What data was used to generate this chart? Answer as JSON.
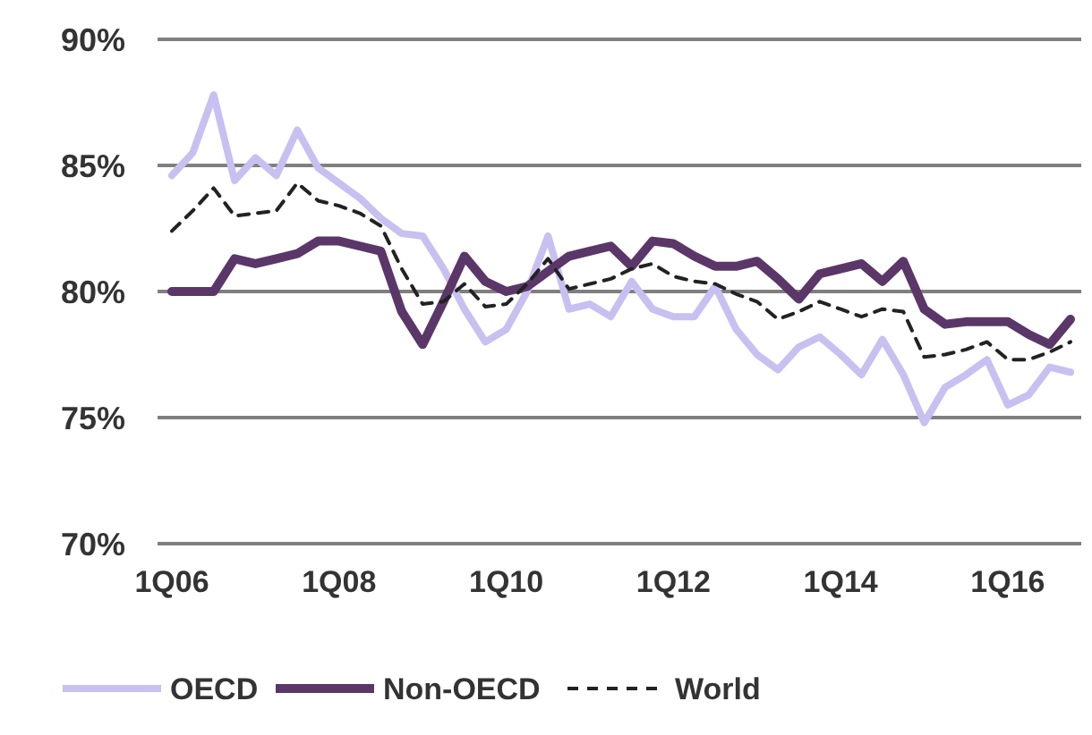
{
  "chart_data": {
    "type": "line",
    "categories": [
      "1Q06",
      null,
      null,
      null,
      null,
      null,
      null,
      null,
      "1Q08",
      null,
      null,
      null,
      null,
      null,
      null,
      null,
      "1Q10",
      null,
      null,
      null,
      null,
      null,
      null,
      null,
      "1Q12",
      null,
      null,
      null,
      null,
      null,
      null,
      null,
      "1Q14",
      null,
      null,
      null,
      null,
      null,
      null,
      null,
      "1Q16",
      null,
      null,
      null
    ],
    "ylim": [
      70,
      90
    ],
    "yticks": [
      {
        "value": 70,
        "label": "70%"
      },
      {
        "value": 75,
        "label": "75%"
      },
      {
        "value": 80,
        "label": "80%"
      },
      {
        "value": 85,
        "label": "85%"
      },
      {
        "value": 90,
        "label": "90%"
      }
    ],
    "grid": "y",
    "legend": "bottom",
    "marker": "none",
    "series": [
      {
        "name": "OECD",
        "color": "#c8c0f0",
        "line_style": "solid",
        "values": [
          84.6,
          85.5,
          87.8,
          84.4,
          85.3,
          84.6,
          86.4,
          84.9,
          84.3,
          83.7,
          82.9,
          82.3,
          82.2,
          80.9,
          79.3,
          78,
          78.5,
          80,
          82.2,
          79.3,
          79.5,
          79,
          80.4,
          79.3,
          79,
          79,
          80.2,
          78.5,
          77.5,
          76.9,
          77.8,
          78.2,
          77.5,
          76.7,
          78.1,
          76.7,
          74.8,
          76.2,
          76.7,
          77.3,
          75.5,
          75.9,
          77,
          76.8
        ]
      },
      {
        "name": "Non-OECD",
        "color": "#5a3768",
        "line_style": "solid",
        "values": [
          80,
          80,
          80,
          81.3,
          81.1,
          81.3,
          81.5,
          82,
          82,
          81.8,
          81.6,
          79.2,
          77.9,
          79.6,
          81.4,
          80.4,
          80,
          80.2,
          80.8,
          81.4,
          81.6,
          81.8,
          81,
          82,
          81.9,
          81.4,
          81,
          81,
          81.2,
          80.5,
          79.7,
          80.7,
          80.9,
          81.1,
          80.4,
          81.2,
          79.3,
          78.7,
          78.8,
          78.8,
          78.8,
          78.3,
          77.9,
          78.9
        ]
      },
      {
        "name": "World",
        "color": "#222222",
        "line_style": "dashed",
        "values": [
          82.4,
          83.2,
          84.1,
          83,
          83.1,
          83.2,
          84.3,
          83.6,
          83.4,
          83.1,
          82.6,
          80.9,
          79.5,
          79.6,
          80.3,
          79.4,
          79.5,
          80.3,
          81.3,
          80.1,
          80.3,
          80.5,
          80.9,
          81.1,
          80.6,
          80.4,
          80.3,
          79.9,
          79.6,
          78.9,
          79.2,
          79.6,
          79.3,
          79,
          79.3,
          79.2,
          77.4,
          77.5,
          77.7,
          78,
          77.3,
          77.3,
          77.6,
          78
        ]
      }
    ]
  }
}
